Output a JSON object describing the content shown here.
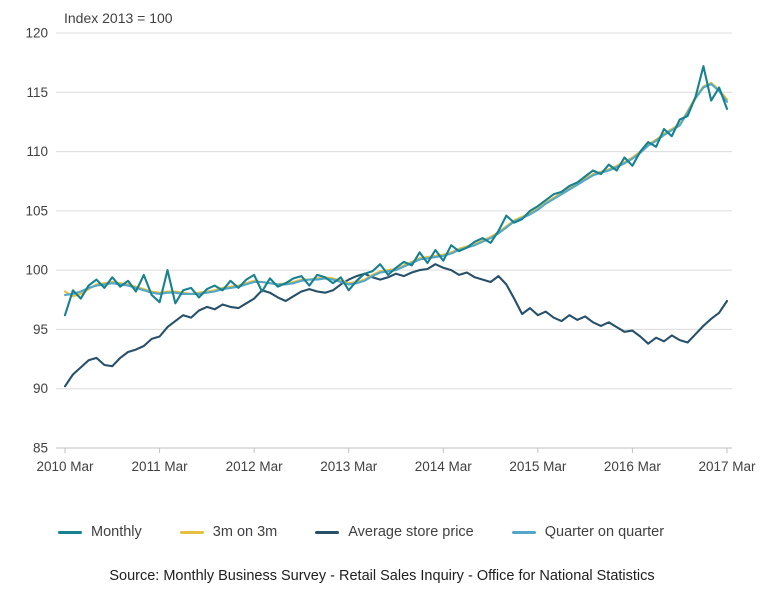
{
  "header": {
    "index_label": "Index 2013 = 100"
  },
  "source": {
    "text": "Source: Monthly Business Survey - Retail Sales Inquiry - Office for National Statistics"
  },
  "chart_data": {
    "type": "line",
    "title": "Index 2013 = 100",
    "xlabel": "",
    "ylabel": "Index 2013 = 100",
    "ylim": [
      85,
      120
    ],
    "grid": true,
    "legend_position": "bottom",
    "y_ticks": [
      85,
      90,
      95,
      100,
      105,
      110,
      115,
      120
    ],
    "x_tick_labels": [
      "2010 Mar",
      "2011 Mar",
      "2012 Mar",
      "2013 Mar",
      "2014 Mar",
      "2015 Mar",
      "2016 Mar",
      "2017 Mar"
    ],
    "x_tick_indices": [
      0,
      12,
      24,
      36,
      48,
      60,
      72,
      84
    ],
    "z_order": [
      2,
      1,
      3,
      0
    ],
    "series": [
      {
        "name": "Monthly",
        "color": "#17818f",
        "values": [
          96.2,
          98.3,
          97.6,
          98.7,
          99.2,
          98.5,
          99.4,
          98.6,
          99.1,
          98.2,
          99.6,
          97.9,
          97.3,
          100.0,
          97.2,
          98.3,
          98.5,
          97.7,
          98.4,
          98.7,
          98.3,
          99.1,
          98.5,
          99.2,
          99.6,
          98.2,
          99.3,
          98.6,
          98.9,
          99.3,
          99.5,
          98.7,
          99.6,
          99.4,
          98.9,
          99.4,
          98.3,
          99.1,
          99.7,
          99.9,
          100.5,
          99.6,
          100.2,
          100.7,
          100.4,
          101.5,
          100.6,
          101.7,
          100.8,
          102.1,
          101.6,
          101.9,
          102.4,
          102.7,
          102.3,
          103.3,
          104.6,
          104.0,
          104.3,
          105.0,
          105.4,
          105.9,
          106.4,
          106.6,
          107.1,
          107.4,
          107.9,
          108.4,
          108.1,
          108.9,
          108.4,
          109.5,
          108.8,
          110.0,
          110.8,
          110.4,
          111.9,
          111.3,
          112.7,
          113.0,
          114.6,
          117.2,
          114.3,
          115.4,
          113.6
        ]
      },
      {
        "name": "3m on 3m",
        "color": "#e5c03f",
        "values": [
          98.2,
          97.8,
          98.0,
          98.4,
          98.8,
          98.9,
          99.0,
          98.9,
          98.8,
          98.6,
          98.4,
          98.2,
          98.1,
          98.2,
          98.2,
          98.1,
          98.0,
          98.1,
          98.2,
          98.3,
          98.5,
          98.6,
          98.7,
          98.9,
          99.1,
          99.0,
          98.9,
          98.8,
          98.9,
          99.0,
          99.2,
          99.2,
          99.3,
          99.4,
          99.3,
          99.1,
          98.9,
          99.0,
          99.2,
          99.6,
          99.9,
          100.0,
          100.1,
          100.4,
          100.7,
          101.0,
          101.1,
          101.2,
          101.3,
          101.5,
          101.8,
          102.0,
          102.2,
          102.5,
          102.8,
          103.2,
          103.7,
          104.2,
          104.5,
          104.8,
          105.2,
          105.7,
          106.1,
          106.5,
          106.9,
          107.3,
          107.7,
          108.1,
          108.3,
          108.5,
          108.8,
          109.1,
          109.5,
          110.0,
          110.6,
          111.0,
          111.5,
          111.9,
          112.3,
          113.4,
          114.6,
          115.5,
          115.8,
          115.2,
          114.4
        ]
      },
      {
        "name": "Average store price",
        "color": "#27506a",
        "values": [
          90.2,
          91.2,
          91.8,
          92.4,
          92.6,
          92.0,
          91.9,
          92.6,
          93.1,
          93.3,
          93.6,
          94.2,
          94.4,
          95.2,
          95.7,
          96.2,
          96.0,
          96.6,
          96.9,
          96.7,
          97.1,
          96.9,
          96.8,
          97.2,
          97.6,
          98.3,
          98.1,
          97.7,
          97.4,
          97.8,
          98.2,
          98.4,
          98.2,
          98.1,
          98.3,
          98.8,
          99.2,
          99.5,
          99.7,
          99.4,
          99.2,
          99.4,
          99.7,
          99.5,
          99.8,
          100.0,
          100.1,
          100.5,
          100.2,
          100.0,
          99.6,
          99.8,
          99.4,
          99.2,
          99.0,
          99.5,
          98.8,
          97.6,
          96.3,
          96.8,
          96.2,
          96.5,
          96.0,
          95.7,
          96.2,
          95.8,
          96.1,
          95.6,
          95.3,
          95.6,
          95.2,
          94.8,
          94.9,
          94.4,
          93.8,
          94.3,
          94.0,
          94.5,
          94.1,
          93.9,
          94.6,
          95.3,
          95.9,
          96.4,
          97.4
        ]
      },
      {
        "name": "Quarter on quarter",
        "color": "#54a7c8",
        "values": [
          97.9,
          98.0,
          98.2,
          98.5,
          98.7,
          98.8,
          98.9,
          98.8,
          98.7,
          98.5,
          98.3,
          98.1,
          98.0,
          98.1,
          98.1,
          98.0,
          98.0,
          98.0,
          98.1,
          98.2,
          98.4,
          98.5,
          98.6,
          98.8,
          99.0,
          99.0,
          98.9,
          98.8,
          98.8,
          98.9,
          99.1,
          99.2,
          99.2,
          99.3,
          99.2,
          99.0,
          98.8,
          98.9,
          99.1,
          99.5,
          99.8,
          99.9,
          100.0,
          100.3,
          100.6,
          100.9,
          101.0,
          101.1,
          101.2,
          101.4,
          101.7,
          101.9,
          102.1,
          102.4,
          102.7,
          103.1,
          103.6,
          104.1,
          104.4,
          104.7,
          105.1,
          105.6,
          106.0,
          106.4,
          106.8,
          107.2,
          107.6,
          108.0,
          108.2,
          108.4,
          108.7,
          109.0,
          109.4,
          109.9,
          110.5,
          110.9,
          111.4,
          111.8,
          112.2,
          113.3,
          114.5,
          115.4,
          115.7,
          115.1,
          114.2
        ]
      }
    ]
  }
}
